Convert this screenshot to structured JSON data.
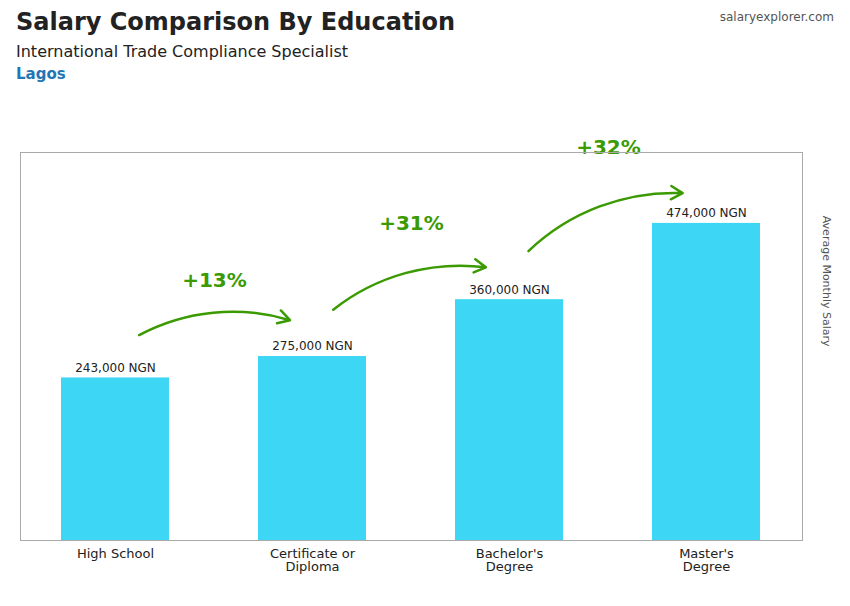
{
  "chart_data": {
    "type": "bar",
    "title": "Salary Comparison By Education",
    "subtitle": "International Trade Compliance Specialist",
    "city": "Lagos",
    "watermark": "salaryexplorer.com",
    "ylabel": "Average Monthly Salary",
    "categories": [
      "High School",
      "Certificate or\nDiploma",
      "Bachelor's\nDegree",
      "Master's\nDegree"
    ],
    "values": [
      243000,
      275000,
      360000,
      474000
    ],
    "value_labels": [
      "243,000 NGN",
      "275,000 NGN",
      "360,000 NGN",
      "474,000 NGN"
    ],
    "pct_labels": [
      "+13%",
      "+31%",
      "+32%"
    ],
    "color": "#3dd6f5",
    "ylim": [
      0,
      580000
    ],
    "yticks": [],
    "tick_labels": "x",
    "data_labels": true,
    "grid": false
  }
}
